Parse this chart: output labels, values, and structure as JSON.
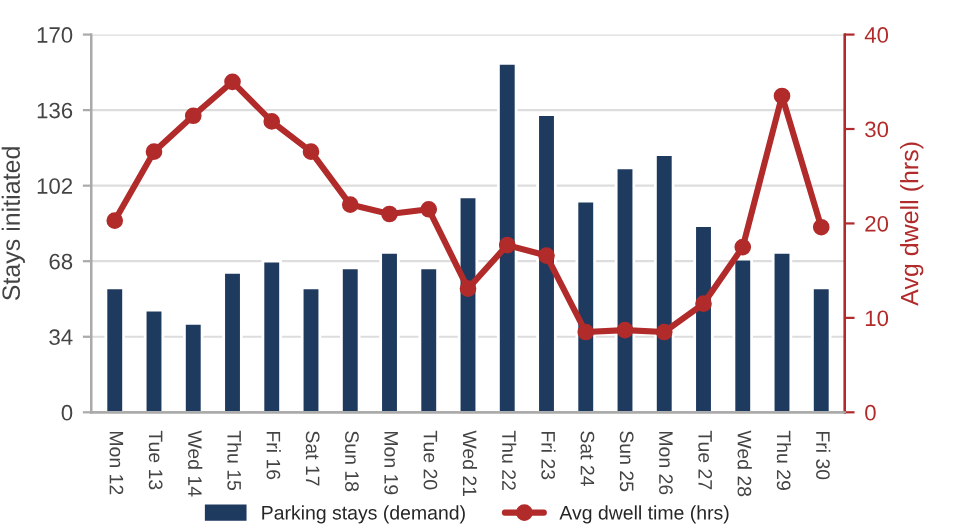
{
  "chart_data": {
    "type": "bar",
    "categories": [
      "Mon 12",
      "Tue 13",
      "Wed 14",
      "Thu 15",
      "Fri 16",
      "Sat 17",
      "Sun 18",
      "Mon 19",
      "Tue 20",
      "Wed 21",
      "Thu 22",
      "Fri 23",
      "Sat 24",
      "Sun 25",
      "Mon 26",
      "Tue 27",
      "Wed 28",
      "Thu 29",
      "Fri 30"
    ],
    "series": [
      {
        "name": "Parking stays (demand)",
        "color": "#1f3a5f",
        "values": [
          56,
          46,
          40,
          63,
          68,
          56,
          65,
          72,
          65,
          97,
          157,
          134,
          95,
          110,
          116,
          84,
          69,
          72,
          56
        ]
      },
      {
        "name": "Avg dwell time (hrs)",
        "type": "line",
        "axis": "y2",
        "color": "#b22b2b",
        "marker": "circle",
        "values": [
          20.3,
          27.6,
          31.4,
          35,
          30.8,
          27.6,
          22,
          21,
          21.5,
          13.1,
          17.7,
          16.6,
          8.5,
          8.7,
          8.5,
          11.5,
          17.5,
          33.5,
          19.6
        ]
      }
    ],
    "ylabel": "Stays initiated",
    "y2label": "Avg dwell (hrs)",
    "ylim": [
      0,
      170
    ],
    "yticks": [
      0,
      34,
      68,
      102,
      136,
      170
    ],
    "y2lim": [
      0,
      40
    ],
    "y2ticks": [
      0,
      10,
      20,
      30,
      40
    ],
    "grid": "y",
    "legend": "bottom"
  }
}
